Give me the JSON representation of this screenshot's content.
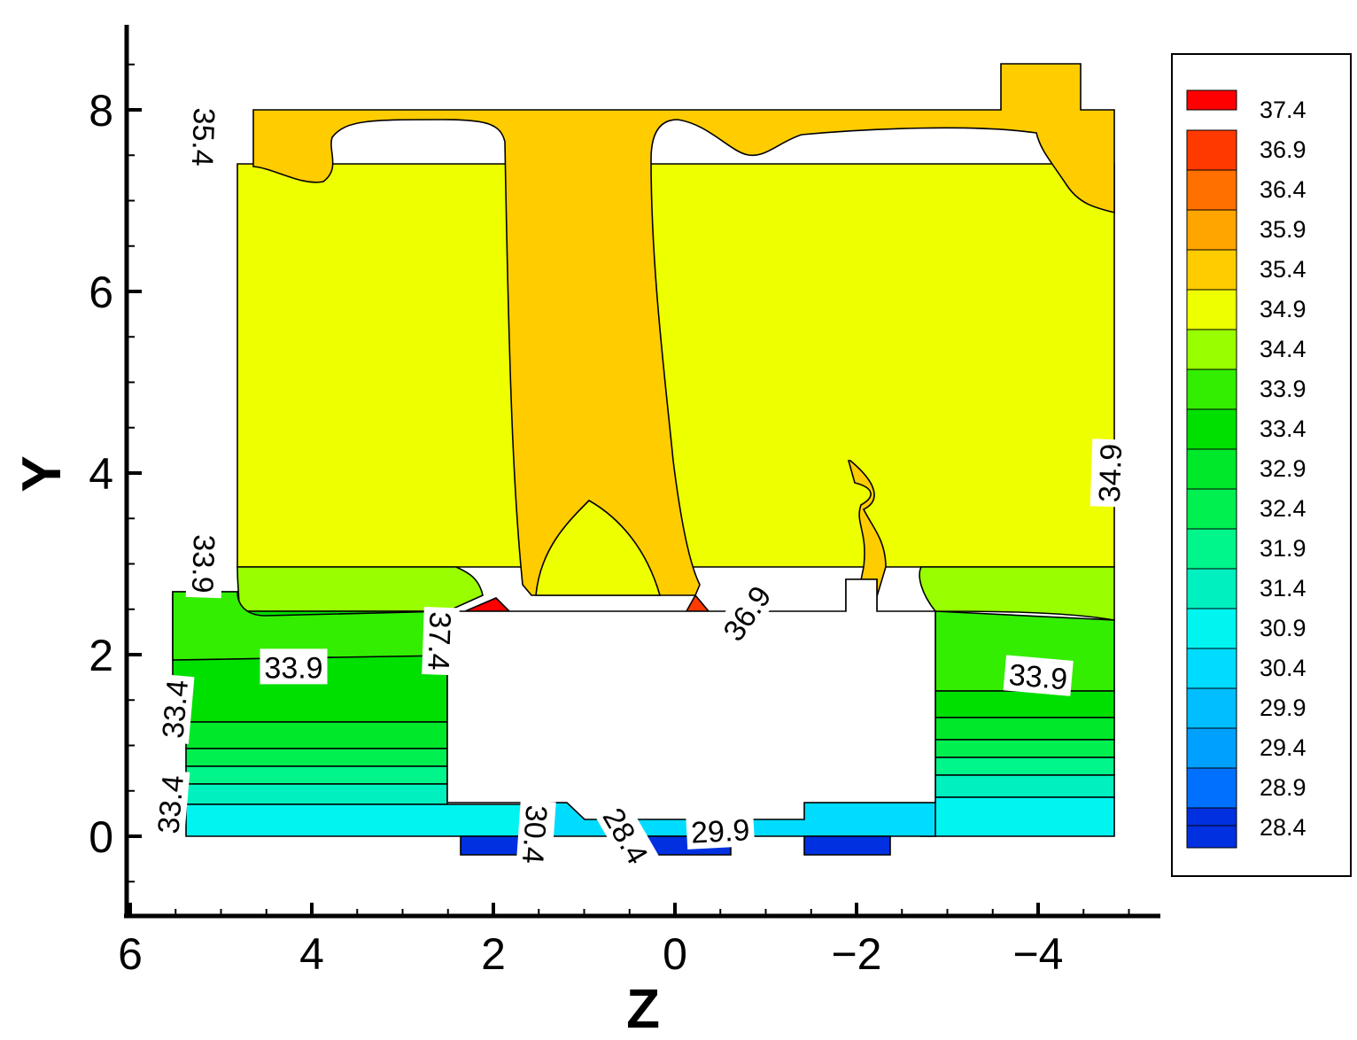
{
  "chart_data": {
    "type": "heatmap",
    "xlabel": "Z",
    "ylabel": "Y",
    "xlim": [
      6,
      -5.4
    ],
    "ylim": [
      -0.9,
      8.9
    ],
    "x_reversed": true,
    "x_ticks": [
      {
        "value": 6,
        "label": "6"
      },
      {
        "value": 4,
        "label": "4"
      },
      {
        "value": 2,
        "label": "2"
      },
      {
        "value": 0,
        "label": "0"
      },
      {
        "value": -2,
        "label": "−2"
      },
      {
        "value": -4,
        "label": "−4"
      }
    ],
    "y_ticks": [
      {
        "value": 0,
        "label": "0"
      },
      {
        "value": 2,
        "label": "2"
      },
      {
        "value": 4,
        "label": "4"
      },
      {
        "value": 6,
        "label": "6"
      },
      {
        "value": 8,
        "label": "8"
      }
    ],
    "legend": {
      "placement": "right",
      "levels": [
        {
          "value": "37.4",
          "color": "#ff0000"
        },
        {
          "value": "36.9",
          "color": "#ff3a00"
        },
        {
          "value": "36.4",
          "color": "#ff7000"
        },
        {
          "value": "35.9",
          "color": "#ffa500"
        },
        {
          "value": "35.4",
          "color": "#ffcc00"
        },
        {
          "value": "34.9",
          "color": "#eeff00"
        },
        {
          "value": "34.4",
          "color": "#99ff00"
        },
        {
          "value": "33.9",
          "color": "#33ee00"
        },
        {
          "value": "33.4",
          "color": "#00e000"
        },
        {
          "value": "32.9",
          "color": "#00e82a"
        },
        {
          "value": "32.4",
          "color": "#00f050"
        },
        {
          "value": "31.9",
          "color": "#00f58a"
        },
        {
          "value": "31.4",
          "color": "#00f0bf"
        },
        {
          "value": "30.9",
          "color": "#00f5f0"
        },
        {
          "value": "30.4",
          "color": "#00dcff"
        },
        {
          "value": "29.9",
          "color": "#00beff"
        },
        {
          "value": "29.4",
          "color": "#00a0ff"
        },
        {
          "value": "28.9",
          "color": "#0070ff"
        },
        {
          "value": "28.4",
          "color": "#0030e0"
        }
      ]
    },
    "contour_labels": [
      {
        "text": "35.4",
        "z": 5.2,
        "y": 7.7,
        "rotation": 92
      },
      {
        "text": "33.9",
        "z": 5.2,
        "y": 3.0,
        "rotation": 92
      },
      {
        "text": "33.9",
        "z": 4.2,
        "y": 1.85,
        "rotation": 0
      },
      {
        "text": "33.4",
        "z": 5.5,
        "y": 1.4,
        "rotation": -85
      },
      {
        "text": "33.4",
        "z": 5.55,
        "y": 0.35,
        "rotation": -85
      },
      {
        "text": "37.4",
        "z": 2.6,
        "y": 2.15,
        "rotation": 92
      },
      {
        "text": "36.9",
        "z": -0.8,
        "y": 2.45,
        "rotation": -55
      },
      {
        "text": "34.9",
        "z": -4.8,
        "y": 4.0,
        "rotation": -88
      },
      {
        "text": "33.9",
        "z": -4.0,
        "y": 1.75,
        "rotation": 5
      },
      {
        "text": "30.4",
        "z": 1.55,
        "y": 0.02,
        "rotation": 94
      },
      {
        "text": "28.4",
        "z": 0.55,
        "y": 0.0,
        "rotation": 60
      },
      {
        "text": "29.9",
        "z": -0.5,
        "y": 0.05,
        "rotation": -3
      }
    ]
  }
}
